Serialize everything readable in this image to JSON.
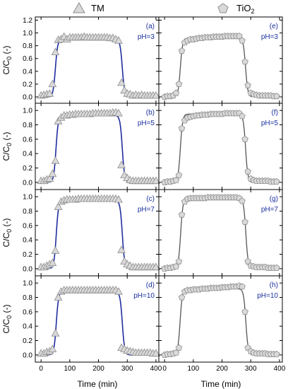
{
  "figure": {
    "legend": [
      {
        "name": "TM",
        "marker": "triangle"
      },
      {
        "name": "TiO",
        "sub": "2",
        "marker": "pentagon"
      }
    ],
    "xlabel": "Time (min)",
    "ylabel_main": "C/C",
    "ylabel_sub": "0",
    "ylabel_tail": " (-)",
    "colors": {
      "tm_line": "#1f2d9e",
      "tio2_line": "#555555",
      "marker_fill": "#d9d9d9",
      "marker_stroke": "#8c8c8c",
      "annotation": "#1a2f9e"
    }
  },
  "chart_data": [
    {
      "type": "scatter",
      "panel": "(a)",
      "condition": "pH=3",
      "material": "TM",
      "xlim": [
        -20,
        410
      ],
      "ylim": [
        -0.1,
        1.25
      ],
      "xticks": [
        0,
        100,
        200,
        300,
        400
      ],
      "yticks": [
        0.0,
        0.2,
        0.4,
        0.6,
        0.8,
        1.0,
        1.2
      ],
      "points": {
        "x": [
          0,
          10,
          20,
          30,
          40,
          50,
          60,
          70,
          80,
          90,
          100,
          110,
          120,
          130,
          140,
          150,
          160,
          170,
          180,
          190,
          200,
          210,
          220,
          230,
          240,
          250,
          260,
          270,
          280,
          290,
          300,
          310,
          320,
          330,
          340,
          350,
          360,
          370,
          380,
          390,
          400
        ],
        "y": [
          0.02,
          0.03,
          0.04,
          0.05,
          0.2,
          0.7,
          0.89,
          0.9,
          0.94,
          0.9,
          0.93,
          0.93,
          0.93,
          0.93,
          0.93,
          0.94,
          0.93,
          0.93,
          0.93,
          0.93,
          0.93,
          0.93,
          0.93,
          0.93,
          0.92,
          0.92,
          0.9,
          0.88,
          0.22,
          0.1,
          0.05,
          0.04,
          0.02,
          0.03,
          0.02,
          0.03,
          0.02,
          0.02,
          0.02,
          0.02,
          0.02
        ]
      },
      "fit": {
        "plateau": 0.9,
        "rise_x": 50,
        "fall_x": 283
      }
    },
    {
      "type": "scatter",
      "panel": "(b)",
      "condition": "pH=5",
      "material": "TM",
      "xlim": [
        -20,
        410
      ],
      "ylim": [
        -0.1,
        1.1
      ],
      "xticks": [
        0,
        100,
        200,
        300,
        400
      ],
      "yticks": [
        0.0,
        0.2,
        0.4,
        0.6,
        0.8,
        1.0
      ],
      "points": {
        "x": [
          0,
          10,
          20,
          30,
          40,
          50,
          60,
          70,
          80,
          90,
          100,
          110,
          120,
          130,
          140,
          150,
          160,
          170,
          180,
          190,
          200,
          210,
          220,
          230,
          240,
          250,
          260,
          270,
          280,
          290,
          300,
          310,
          320,
          330,
          340,
          350,
          360,
          370,
          380,
          390,
          400
        ],
        "y": [
          0.02,
          0.02,
          0.04,
          0.05,
          0.12,
          0.3,
          0.85,
          0.9,
          0.93,
          0.93,
          0.94,
          0.94,
          0.95,
          0.95,
          0.95,
          0.95,
          0.95,
          0.95,
          0.96,
          0.96,
          0.96,
          0.96,
          0.96,
          0.96,
          0.96,
          0.97,
          0.97,
          0.96,
          0.24,
          0.1,
          0.06,
          0.03,
          0.02,
          0.02,
          0.02,
          0.02,
          0.02,
          0.02,
          0.02,
          0.02,
          0.02
        ]
      },
      "fit": {
        "plateau": 0.93,
        "rise_x": 52,
        "fall_x": 283
      }
    },
    {
      "type": "scatter",
      "panel": "(c)",
      "condition": "pH=7",
      "material": "TM",
      "xlim": [
        -20,
        410
      ],
      "ylim": [
        -0.1,
        1.1
      ],
      "xticks": [
        0,
        100,
        200,
        300,
        400
      ],
      "yticks": [
        0.0,
        0.2,
        0.4,
        0.6,
        0.8,
        1.0
      ],
      "points": {
        "x": [
          0,
          10,
          20,
          30,
          40,
          50,
          60,
          70,
          80,
          90,
          100,
          110,
          120,
          130,
          140,
          150,
          160,
          170,
          180,
          190,
          200,
          210,
          220,
          230,
          240,
          250,
          260,
          270,
          280,
          290,
          300,
          310,
          320,
          330,
          340,
          350,
          360,
          370,
          380,
          390,
          400
        ],
        "y": [
          0.02,
          0.02,
          0.04,
          0.06,
          0.08,
          0.25,
          0.86,
          0.93,
          0.95,
          0.96,
          0.96,
          0.96,
          0.96,
          0.97,
          0.97,
          0.97,
          0.97,
          0.97,
          0.97,
          0.97,
          0.97,
          0.97,
          0.97,
          0.97,
          0.97,
          0.97,
          0.97,
          0.96,
          0.26,
          0.1,
          0.06,
          0.04,
          0.02,
          0.02,
          0.02,
          0.02,
          0.02,
          0.02,
          0.02,
          0.02,
          0.02
        ]
      },
      "fit": {
        "plateau": 0.95,
        "rise_x": 53,
        "fall_x": 283
      }
    },
    {
      "type": "scatter",
      "panel": "(d)",
      "condition": "pH=10",
      "material": "TM",
      "xlim": [
        -20,
        410
      ],
      "ylim": [
        -0.1,
        1.1
      ],
      "xticks": [
        0,
        100,
        200,
        300,
        400
      ],
      "yticks": [
        0.0,
        0.2,
        0.4,
        0.6,
        0.8,
        1.0
      ],
      "points": {
        "x": [
          0,
          10,
          20,
          30,
          40,
          50,
          60,
          70,
          80,
          90,
          100,
          110,
          120,
          130,
          140,
          150,
          160,
          170,
          180,
          190,
          200,
          210,
          220,
          230,
          240,
          250,
          260,
          270,
          280,
          290,
          300,
          310,
          320,
          330,
          340,
          350,
          360,
          370,
          380,
          390,
          400
        ],
        "y": [
          0.02,
          0.02,
          0.04,
          0.05,
          0.08,
          0.3,
          0.8,
          0.88,
          0.9,
          0.9,
          0.9,
          0.9,
          0.9,
          0.9,
          0.9,
          0.9,
          0.9,
          0.9,
          0.9,
          0.9,
          0.9,
          0.9,
          0.9,
          0.9,
          0.9,
          0.9,
          0.9,
          0.88,
          0.1,
          0.08,
          0.06,
          0.05,
          0.04,
          0.03,
          0.03,
          0.03,
          0.03,
          0.03,
          0.03,
          0.02,
          0.02
        ]
      },
      "fit": {
        "plateau": 0.88,
        "rise_x": 53,
        "fall_x": 283
      }
    },
    {
      "type": "scatter",
      "panel": "(e)",
      "condition": "pH=3",
      "material": "TiO2",
      "xlim": [
        -20,
        410
      ],
      "ylim": [
        -0.1,
        1.25
      ],
      "xticks": [
        0,
        100,
        200,
        300,
        400
      ],
      "yticks": [
        0.0,
        0.2,
        0.4,
        0.6,
        0.8,
        1.0,
        1.2
      ],
      "points": {
        "x": [
          0,
          10,
          20,
          30,
          40,
          50,
          60,
          70,
          80,
          90,
          100,
          110,
          120,
          130,
          140,
          150,
          160,
          170,
          180,
          190,
          200,
          210,
          220,
          230,
          240,
          250,
          260,
          270,
          280,
          290,
          300,
          310,
          320,
          330,
          340,
          350,
          360,
          370,
          380,
          390
        ],
        "y": [
          0.0,
          0.01,
          0.01,
          0.02,
          0.06,
          0.2,
          0.72,
          0.85,
          0.88,
          0.9,
          0.9,
          0.91,
          0.92,
          0.92,
          0.93,
          0.93,
          0.93,
          0.94,
          0.94,
          0.94,
          0.94,
          0.95,
          0.95,
          0.95,
          0.95,
          0.95,
          0.95,
          0.88,
          0.55,
          0.18,
          0.06,
          0.04,
          0.03,
          0.02,
          0.02,
          0.02,
          0.02,
          0.02,
          0.01,
          0.01
        ]
      },
      "fit": {
        "plateau": 0.92,
        "rise_x": 55,
        "fall_x": 282
      }
    },
    {
      "type": "scatter",
      "panel": "(f)",
      "condition": "pH=5",
      "material": "TiO2",
      "xlim": [
        -20,
        410
      ],
      "ylim": [
        -0.1,
        1.1
      ],
      "xticks": [
        0,
        100,
        200,
        300,
        400
      ],
      "yticks": [
        0.0,
        0.2,
        0.4,
        0.6,
        0.8,
        1.0
      ],
      "points": {
        "x": [
          0,
          10,
          20,
          30,
          40,
          50,
          60,
          70,
          80,
          90,
          100,
          110,
          120,
          130,
          140,
          150,
          160,
          170,
          180,
          190,
          200,
          210,
          220,
          230,
          240,
          250,
          260,
          270,
          280,
          290,
          300,
          310,
          320,
          330,
          340,
          350,
          360,
          370,
          380,
          390
        ],
        "y": [
          0.0,
          0.01,
          0.01,
          0.02,
          0.03,
          0.1,
          0.75,
          0.86,
          0.9,
          0.91,
          0.92,
          0.93,
          0.93,
          0.94,
          0.94,
          0.94,
          0.95,
          0.95,
          0.95,
          0.95,
          0.95,
          0.96,
          0.96,
          0.96,
          0.96,
          0.96,
          0.96,
          0.92,
          0.6,
          0.15,
          0.05,
          0.03,
          0.02,
          0.02,
          0.02,
          0.02,
          0.02,
          0.01,
          0.01,
          0.01
        ]
      },
      "fit": {
        "plateau": 0.95,
        "rise_x": 55,
        "fall_x": 282
      }
    },
    {
      "type": "scatter",
      "panel": "(g)",
      "condition": "pH=7",
      "material": "TiO2",
      "xlim": [
        -20,
        410
      ],
      "ylim": [
        -0.1,
        1.1
      ],
      "xticks": [
        0,
        100,
        200,
        300,
        400
      ],
      "yticks": [
        0.0,
        0.2,
        0.4,
        0.6,
        0.8,
        1.0
      ],
      "points": {
        "x": [
          0,
          10,
          20,
          30,
          40,
          50,
          60,
          70,
          80,
          90,
          100,
          110,
          120,
          130,
          140,
          150,
          160,
          170,
          180,
          190,
          200,
          210,
          220,
          230,
          240,
          250,
          260,
          270,
          280,
          290,
          300,
          310,
          320,
          330,
          340,
          350,
          360,
          370,
          380,
          390
        ],
        "y": [
          0.0,
          0.01,
          0.01,
          0.02,
          0.03,
          0.1,
          0.75,
          0.93,
          0.97,
          0.98,
          0.98,
          0.98,
          0.98,
          0.98,
          0.98,
          0.99,
          0.99,
          0.99,
          0.99,
          0.99,
          0.99,
          0.99,
          0.99,
          0.99,
          0.99,
          0.99,
          0.98,
          0.94,
          0.65,
          0.1,
          0.04,
          0.03,
          0.02,
          0.02,
          0.02,
          0.02,
          0.01,
          0.01,
          0.01,
          0.01
        ]
      },
      "fit": {
        "plateau": 0.98,
        "rise_x": 56,
        "fall_x": 283
      }
    },
    {
      "type": "scatter",
      "panel": "(h)",
      "condition": "pH=10",
      "material": "TiO2",
      "xlim": [
        -20,
        410
      ],
      "ylim": [
        -0.1,
        1.1
      ],
      "xticks": [
        0,
        100,
        200,
        300,
        400
      ],
      "yticks": [
        0.0,
        0.2,
        0.4,
        0.6,
        0.8,
        1.0
      ],
      "points": {
        "x": [
          0,
          10,
          20,
          30,
          40,
          50,
          60,
          70,
          80,
          90,
          100,
          110,
          120,
          130,
          140,
          150,
          160,
          170,
          180,
          190,
          200,
          210,
          220,
          230,
          240,
          250,
          260,
          270,
          280,
          290,
          300,
          310,
          320,
          330,
          340,
          350,
          360,
          370,
          380,
          390
        ],
        "y": [
          0.0,
          0.01,
          0.01,
          0.02,
          0.03,
          0.1,
          0.8,
          0.88,
          0.9,
          0.9,
          0.91,
          0.91,
          0.91,
          0.92,
          0.92,
          0.92,
          0.93,
          0.93,
          0.93,
          0.93,
          0.94,
          0.94,
          0.94,
          0.95,
          0.95,
          0.95,
          0.96,
          0.95,
          0.6,
          0.1,
          0.05,
          0.03,
          0.02,
          0.02,
          0.02,
          0.02,
          0.01,
          0.01,
          0.01,
          0.01
        ]
      },
      "fit": {
        "plateau": 0.92,
        "rise_x": 54,
        "fall_x": 283
      }
    }
  ]
}
